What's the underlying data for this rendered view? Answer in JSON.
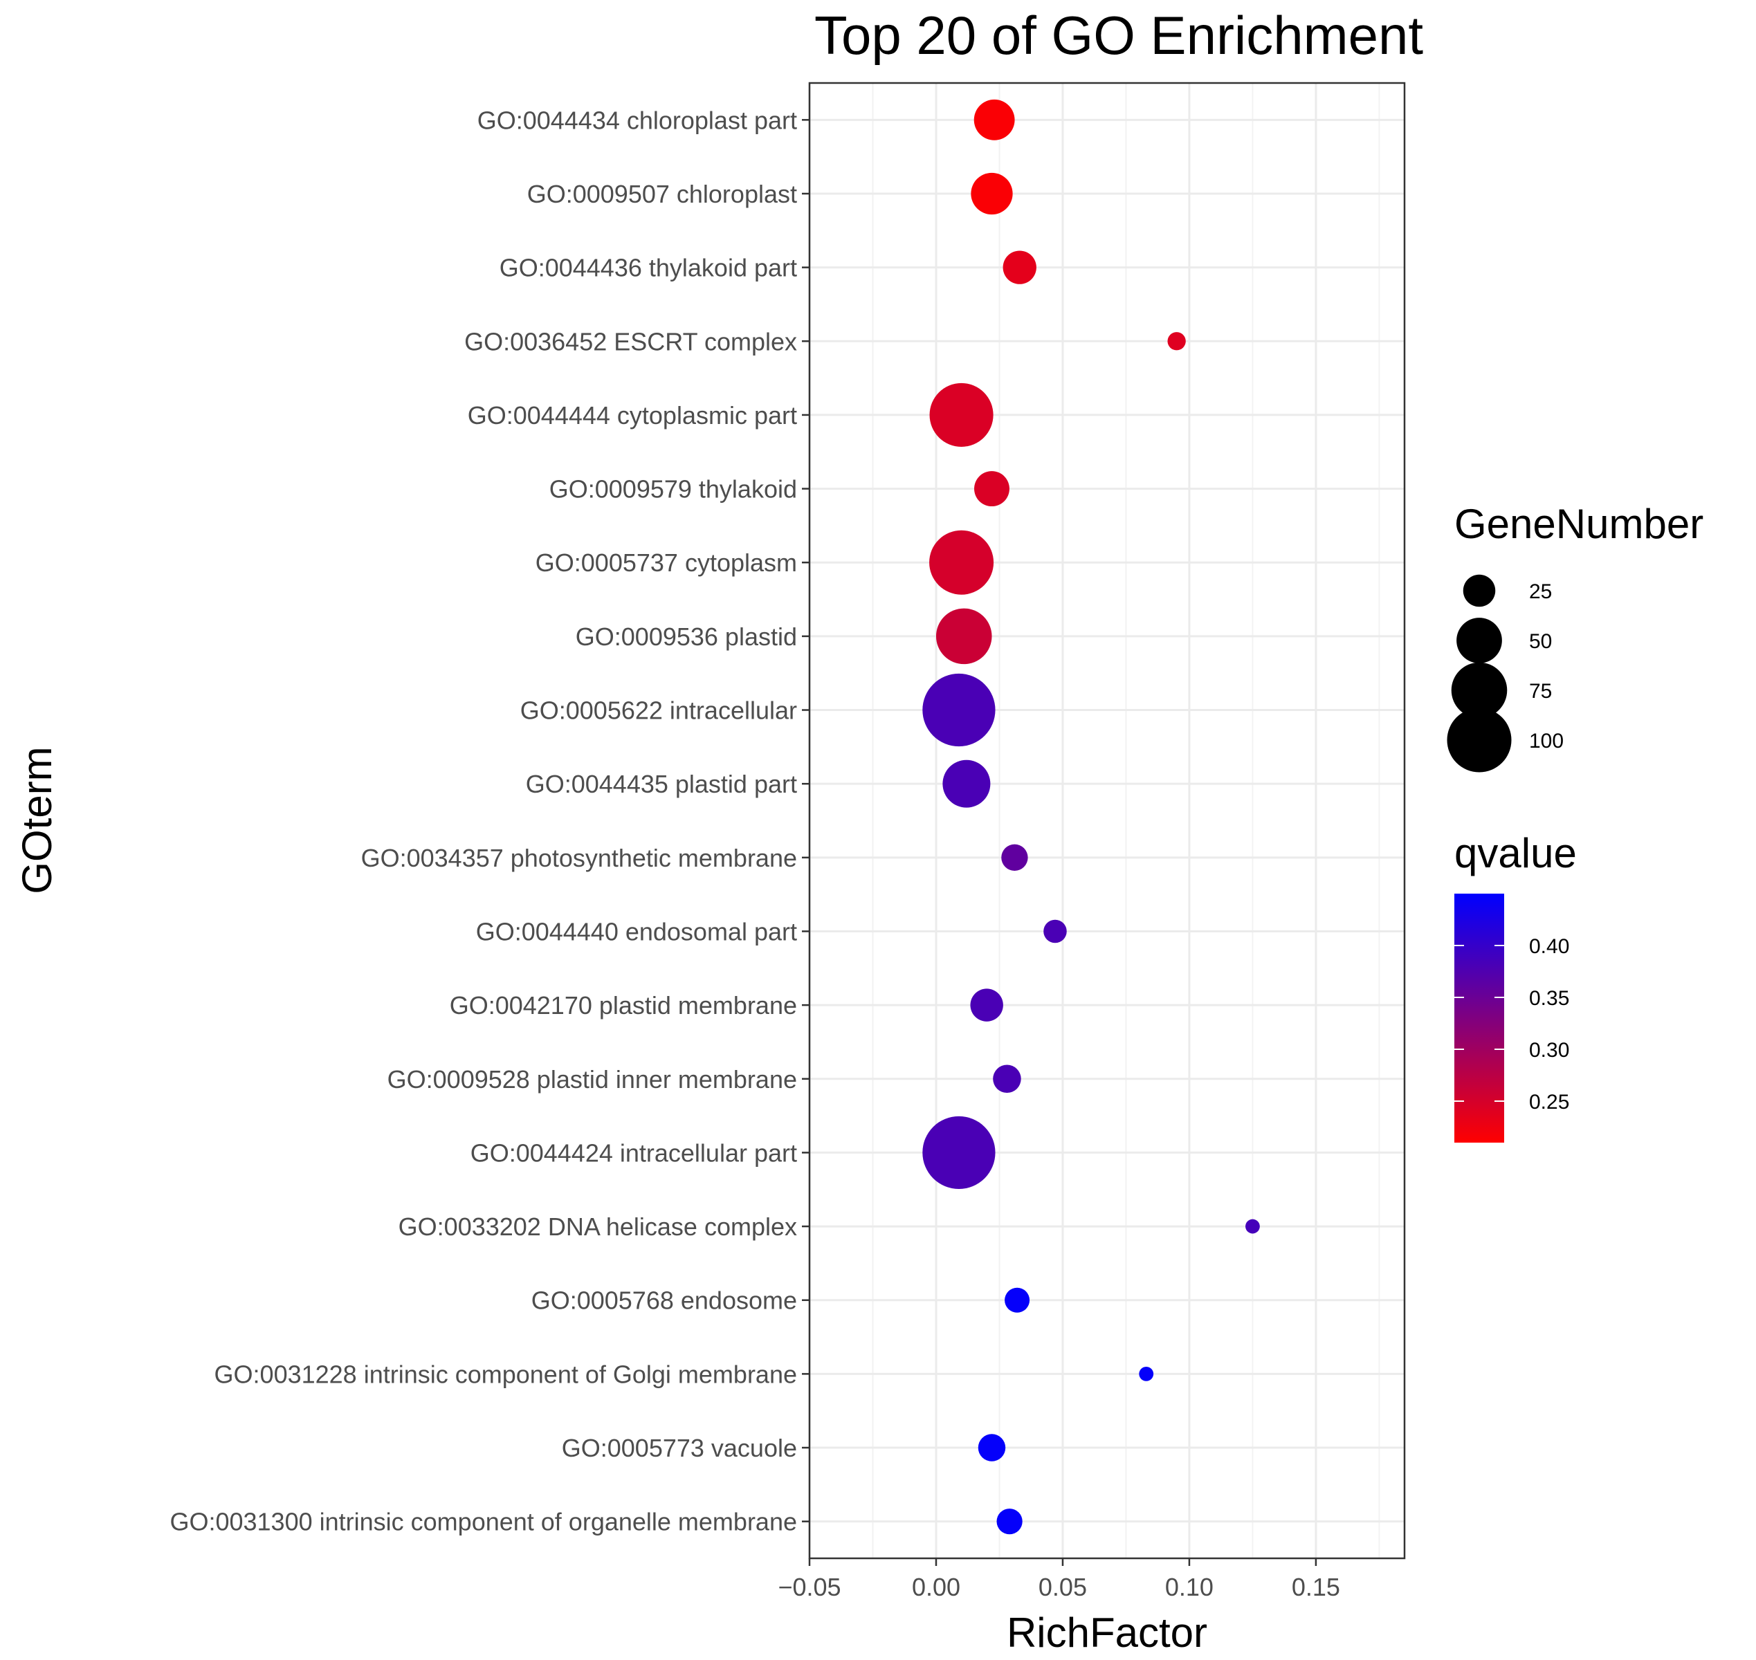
{
  "chart_data": {
    "type": "scatter",
    "title": "Top 20 of GO Enrichment",
    "xlabel": "RichFactor",
    "ylabel": "GOterm",
    "xlim": [
      -0.05,
      0.185
    ],
    "xticks": [
      -0.05,
      0.0,
      0.05,
      0.1,
      0.15
    ],
    "xtick_labels": [
      "−0.05",
      "0.00",
      "0.05",
      "0.10",
      "0.15"
    ],
    "grid": true,
    "legend_position": "right",
    "size_legend": {
      "title": "GeneNumber",
      "values": [
        25,
        50,
        75,
        100
      ],
      "labels": [
        "25",
        "50",
        "75",
        "100"
      ]
    },
    "color_legend": {
      "title": "qvalue",
      "range": [
        0.21,
        0.45
      ],
      "ticks": [
        0.25,
        0.3,
        0.35,
        0.4
      ],
      "labels": [
        "0.25",
        "0.30",
        "0.35",
        "0.40"
      ],
      "low_color": "#ff0000",
      "high_color": "#0000ff"
    },
    "points": [
      {
        "term": "GO:0044434 chloroplast part",
        "rich_factor": 0.023,
        "gene_number": 40,
        "qvalue": 0.215
      },
      {
        "term": "GO:0009507 chloroplast",
        "rich_factor": 0.022,
        "gene_number": 42,
        "qvalue": 0.215
      },
      {
        "term": "GO:0044436 thylakoid part",
        "rich_factor": 0.033,
        "gene_number": 27,
        "qvalue": 0.235
      },
      {
        "term": "GO:0036452 ESCRT complex",
        "rich_factor": 0.095,
        "gene_number": 8,
        "qvalue": 0.24
      },
      {
        "term": "GO:0044444 cytoplasmic part",
        "rich_factor": 0.01,
        "gene_number": 98,
        "qvalue": 0.245
      },
      {
        "term": "GO:0009579 thylakoid",
        "rich_factor": 0.022,
        "gene_number": 30,
        "qvalue": 0.245
      },
      {
        "term": "GO:0005737 cytoplasm",
        "rich_factor": 0.01,
        "gene_number": 100,
        "qvalue": 0.25
      },
      {
        "term": "GO:0009536 plastid",
        "rich_factor": 0.011,
        "gene_number": 75,
        "qvalue": 0.26
      },
      {
        "term": "GO:0005622 intracellular",
        "rich_factor": 0.009,
        "gene_number": 128,
        "qvalue": 0.38
      },
      {
        "term": "GO:0044435 plastid part",
        "rich_factor": 0.012,
        "gene_number": 55,
        "qvalue": 0.38
      },
      {
        "term": "GO:0034357 photosynthetic membrane",
        "rich_factor": 0.031,
        "gene_number": 17,
        "qvalue": 0.36
      },
      {
        "term": "GO:0044440 endosomal part",
        "rich_factor": 0.047,
        "gene_number": 13,
        "qvalue": 0.38
      },
      {
        "term": "GO:0042170 plastid membrane",
        "rich_factor": 0.02,
        "gene_number": 26,
        "qvalue": 0.38
      },
      {
        "term": "GO:0009528 plastid inner membrane",
        "rich_factor": 0.028,
        "gene_number": 19,
        "qvalue": 0.38
      },
      {
        "term": "GO:0044424 intracellular part",
        "rich_factor": 0.009,
        "gene_number": 128,
        "qvalue": 0.38
      },
      {
        "term": "GO:0033202 DNA helicase complex",
        "rich_factor": 0.125,
        "gene_number": 5,
        "qvalue": 0.385
      },
      {
        "term": "GO:0005768 endosome",
        "rich_factor": 0.032,
        "gene_number": 15,
        "qvalue": 0.445
      },
      {
        "term": "GO:0031228 intrinsic component of Golgi membrane",
        "rich_factor": 0.083,
        "gene_number": 5,
        "qvalue": 0.445
      },
      {
        "term": "GO:0005773 vacuole",
        "rich_factor": 0.022,
        "gene_number": 18,
        "qvalue": 0.445
      },
      {
        "term": "GO:0031300 intrinsic component of organelle membrane",
        "rich_factor": 0.029,
        "gene_number": 16,
        "qvalue": 0.445
      }
    ]
  }
}
